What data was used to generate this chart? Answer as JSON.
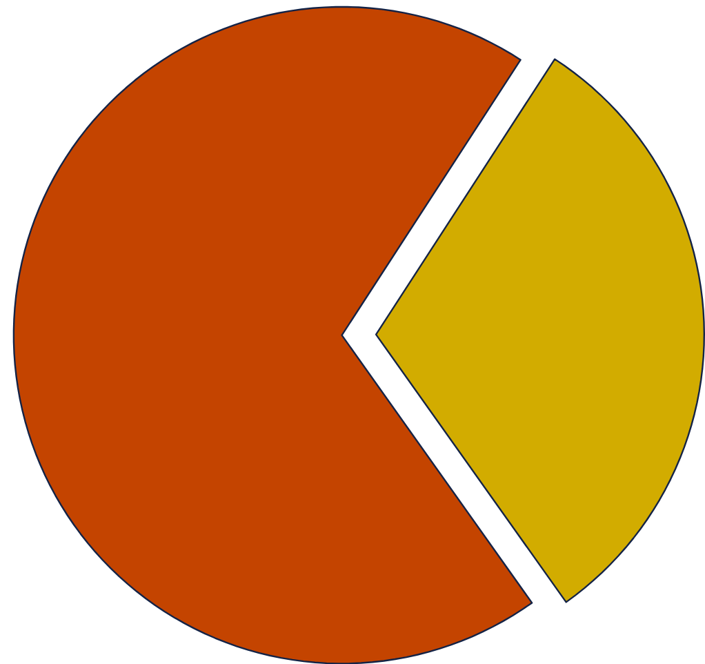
{
  "chart_data": {
    "type": "pie",
    "categories": [
      null,
      null
    ],
    "values": [
      69,
      31
    ],
    "colors": [
      "#c44400",
      "#d2ac00"
    ]
  }
}
